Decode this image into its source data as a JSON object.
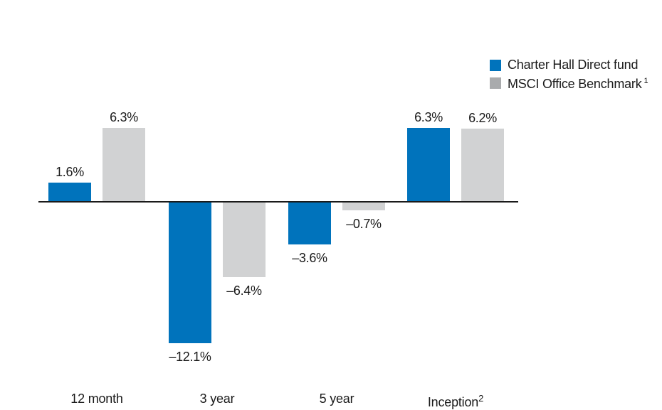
{
  "colors": {
    "fund_blue": "#0073bc",
    "benchmark_gray_bar": "#d1d2d3",
    "benchmark_gray_legend": "#a9abad",
    "text": "#1a1a1a",
    "axis_line": "#1a1a1a",
    "background": "#ffffff"
  },
  "chart_data": {
    "type": "bar",
    "title": "",
    "xlabel": "",
    "ylabel": "",
    "grid": false,
    "legend_position": "top-right",
    "baseline_value": 0,
    "ylim": [
      -13,
      8
    ],
    "categories": [
      {
        "label": "12 month",
        "sup": ""
      },
      {
        "label": "3 year",
        "sup": ""
      },
      {
        "label": "5 year",
        "sup": ""
      },
      {
        "label": "Inception",
        "sup": "2"
      }
    ],
    "series": [
      {
        "name": "Charter Hall Direct fund",
        "sup": "",
        "color": "#0073bc",
        "legend_color": "#0073bc",
        "values": [
          1.6,
          -12.1,
          -3.6,
          6.3
        ],
        "labels": [
          "1.6%",
          "–12.1%",
          "–3.6%",
          "6.3%"
        ]
      },
      {
        "name": "MSCI Office Benchmark",
        "sup": "1",
        "color": "#d1d2d3",
        "legend_color": "#a9abad",
        "values": [
          6.3,
          -6.4,
          -0.7,
          6.2
        ],
        "labels": [
          "6.3%",
          "–6.4%",
          "–0.7%",
          "6.2%"
        ]
      }
    ]
  }
}
